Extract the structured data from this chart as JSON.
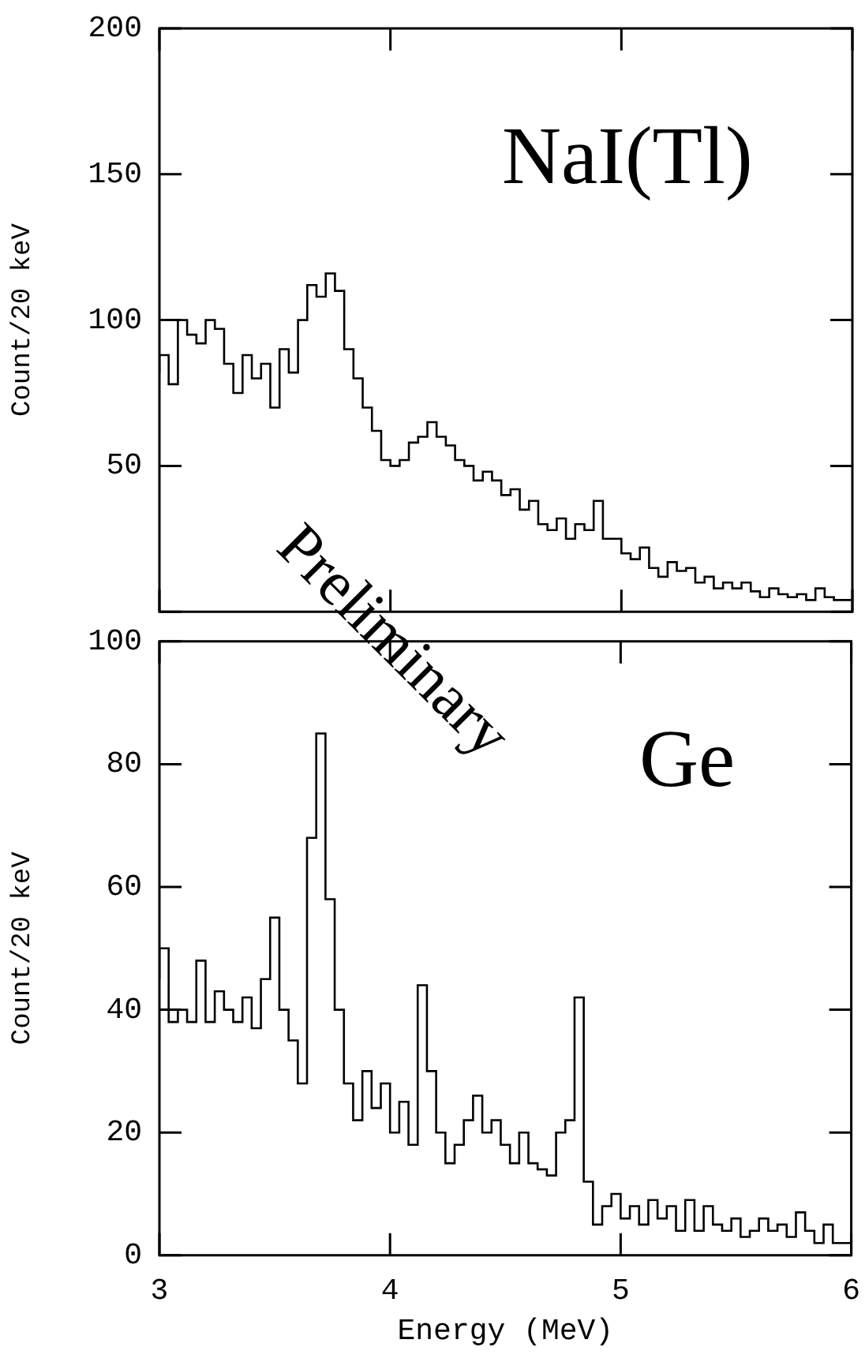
{
  "chart_data": [
    {
      "type": "step",
      "ylabel": "Count/20 keV",
      "annotations": [
        "NaI(Tl)",
        "Preliminary"
      ],
      "tick_labels": "y",
      "xlim": [
        3,
        6
      ],
      "xticks": [
        3,
        4,
        5,
        6
      ],
      "ylim": [
        0,
        200
      ],
      "yticks": [
        {
          "value": 0,
          "label": null
        },
        50,
        100,
        150,
        200
      ],
      "legend": false,
      "grid": false,
      "x": [
        3.0,
        3.04,
        3.08,
        3.12,
        3.16,
        3.2,
        3.24,
        3.28,
        3.32,
        3.36,
        3.4,
        3.44,
        3.48,
        3.52,
        3.56,
        3.6,
        3.64,
        3.68,
        3.72,
        3.76,
        3.8,
        3.84,
        3.88,
        3.92,
        3.96,
        4.0,
        4.04,
        4.08,
        4.12,
        4.16,
        4.2,
        4.24,
        4.28,
        4.32,
        4.36,
        4.4,
        4.44,
        4.48,
        4.52,
        4.56,
        4.6,
        4.64,
        4.68,
        4.72,
        4.76,
        4.8,
        4.84,
        4.88,
        4.92,
        4.96,
        5.0,
        5.04,
        5.08,
        5.12,
        5.16,
        5.2,
        5.24,
        5.28,
        5.32,
        5.36,
        5.4,
        5.44,
        5.48,
        5.52,
        5.56,
        5.6,
        5.64,
        5.68,
        5.72,
        5.76,
        5.8,
        5.84,
        5.88,
        5.92,
        5.96,
        6.0
      ],
      "series": [
        {
          "color": "#000000",
          "values": [
            82,
            88,
            78,
            100,
            95,
            92,
            100,
            97,
            85,
            75,
            88,
            80,
            85,
            70,
            90,
            82,
            100,
            112,
            108,
            116,
            110,
            90,
            80,
            70,
            62,
            52,
            50,
            52,
            58,
            60,
            65,
            60,
            57,
            52,
            50,
            45,
            48,
            45,
            40,
            42,
            35,
            38,
            30,
            28,
            32,
            25,
            30,
            28,
            38,
            25,
            25,
            20,
            18,
            22,
            15,
            12,
            17,
            14,
            15,
            10,
            12,
            8,
            10,
            8,
            10,
            7,
            5,
            8,
            6,
            5,
            6,
            4,
            8,
            5,
            4,
            4
          ]
        }
      ]
    },
    {
      "type": "step",
      "xlabel": "Energy (MeV)",
      "ylabel": "Count/20 keV",
      "annotations": [
        "Ge"
      ],
      "xlim": [
        3,
        6
      ],
      "xticks": [
        3,
        4,
        5,
        6
      ],
      "ylim": [
        0,
        100
      ],
      "yticks": [
        0,
        20,
        40,
        60,
        80,
        100
      ],
      "legend": false,
      "grid": false,
      "x": [
        3.0,
        3.04,
        3.08,
        3.12,
        3.16,
        3.2,
        3.24,
        3.28,
        3.32,
        3.36,
        3.4,
        3.44,
        3.48,
        3.52,
        3.56,
        3.6,
        3.64,
        3.68,
        3.72,
        3.76,
        3.8,
        3.84,
        3.88,
        3.92,
        3.96,
        4.0,
        4.04,
        4.08,
        4.12,
        4.16,
        4.2,
        4.24,
        4.28,
        4.32,
        4.36,
        4.4,
        4.44,
        4.48,
        4.52,
        4.56,
        4.6,
        4.64,
        4.68,
        4.72,
        4.76,
        4.8,
        4.84,
        4.88,
        4.92,
        4.96,
        5.0,
        5.04,
        5.08,
        5.12,
        5.16,
        5.2,
        5.24,
        5.28,
        5.32,
        5.36,
        5.4,
        5.44,
        5.48,
        5.52,
        5.56,
        5.6,
        5.64,
        5.68,
        5.72,
        5.76,
        5.8,
        5.84,
        5.88,
        5.92,
        5.96,
        6.0
      ],
      "series": [
        {
          "color": "#000000",
          "values": [
            45,
            50,
            38,
            40,
            38,
            48,
            38,
            43,
            40,
            38,
            42,
            37,
            45,
            55,
            40,
            35,
            28,
            68,
            85,
            58,
            40,
            28,
            22,
            30,
            24,
            28,
            20,
            25,
            18,
            44,
            30,
            20,
            15,
            18,
            22,
            26,
            20,
            22,
            18,
            15,
            20,
            15,
            14,
            13,
            20,
            22,
            42,
            12,
            5,
            8,
            10,
            6,
            8,
            5,
            9,
            6,
            8,
            4,
            9,
            4,
            8,
            5,
            4,
            6,
            3,
            4,
            6,
            4,
            5,
            3,
            7,
            4,
            2,
            5,
            2,
            2
          ]
        }
      ]
    }
  ]
}
